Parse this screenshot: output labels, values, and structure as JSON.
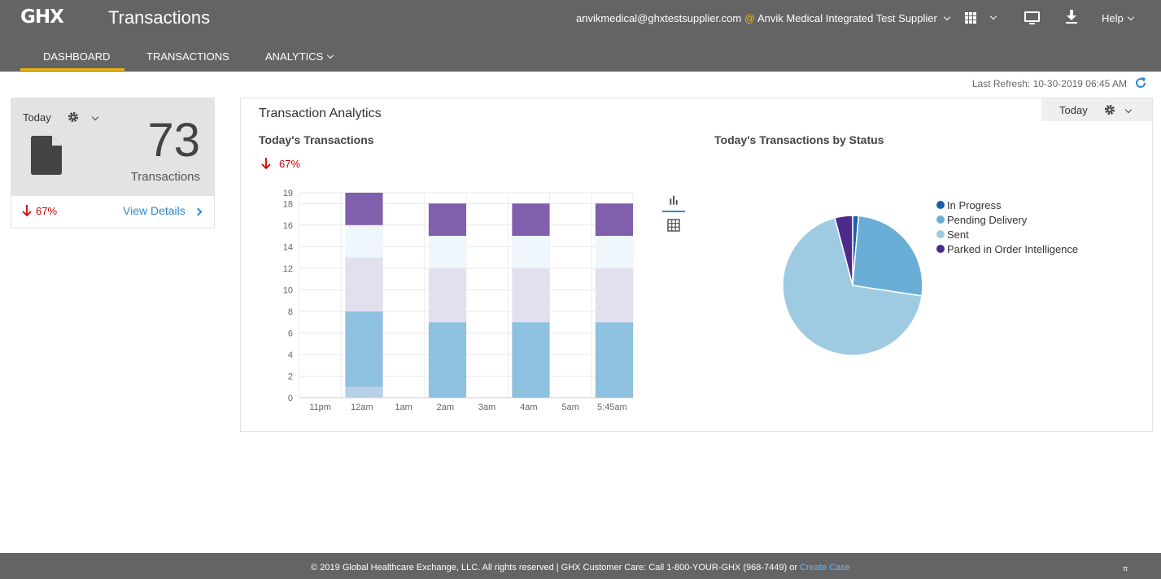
{
  "header": {
    "logo": "GHX",
    "app_title": "Transactions",
    "account_email": "anvikmedical@ghxtestsupplier.com",
    "account_at": "@",
    "account_org": "Anvik Medical Integrated Test Supplier",
    "help_label": "Help",
    "icons": [
      "apps-grid-icon",
      "monitor-icon",
      "download-icon"
    ]
  },
  "nav": {
    "tabs": [
      {
        "label": "DASHBOARD",
        "active": true
      },
      {
        "label": "TRANSACTIONS",
        "active": false
      },
      {
        "label": "ANALYTICS",
        "active": false
      }
    ]
  },
  "refresh": {
    "label": "Last Refresh: 10-30-2019 06:45 AM"
  },
  "tile": {
    "period": "Today",
    "count": "73",
    "label": "Transactions",
    "change": "67%",
    "details_link": "View Details"
  },
  "panel": {
    "title": "Transaction Analytics",
    "period": "Today",
    "left_subtitle": "Today's Transactions",
    "left_change": "67%",
    "right_subtitle": "Today's Transactions by Status"
  },
  "colors": {
    "accent": "#f4b400",
    "link": "#2a8ad2",
    "negative": "#cc0000",
    "topbar": "#646464"
  },
  "chart_data": [
    {
      "type": "bar",
      "stacked": true,
      "title": "Today's Transactions",
      "categories": [
        "11pm",
        "12am",
        "1am",
        "2am",
        "3am",
        "4am",
        "5am",
        "5:45am"
      ],
      "series": [
        {
          "color": "#b8cfe8",
          "values": [
            0,
            1,
            0,
            0,
            0,
            0,
            0,
            0
          ]
        },
        {
          "color": "#8ec0e0",
          "values": [
            0,
            7,
            0,
            7,
            0,
            7,
            0,
            7
          ]
        },
        {
          "color": "#e2e0ee",
          "values": [
            0,
            5,
            0,
            5,
            0,
            5,
            0,
            5
          ]
        },
        {
          "color": "#f0f7fc",
          "values": [
            0,
            3,
            0,
            3,
            0,
            3,
            0,
            3
          ]
        },
        {
          "color": "#8060ac",
          "values": [
            0,
            3,
            0,
            3,
            0,
            3,
            0,
            3
          ]
        }
      ],
      "ylim": [
        0,
        19
      ],
      "yticks": [
        0,
        2,
        4,
        6,
        8,
        10,
        12,
        14,
        16,
        18,
        19
      ],
      "grid": true
    },
    {
      "type": "pie",
      "title": "Today's Transactions by Status",
      "legend_position": "right",
      "slices": [
        {
          "label": "In Progress",
          "value": 1,
          "color": "#1f5fa8"
        },
        {
          "label": "Pending Delivery",
          "value": 19,
          "color": "#6aaed8"
        },
        {
          "label": "Sent",
          "value": 50,
          "color": "#9ecae2"
        },
        {
          "label": "Parked in Order Intelligence",
          "value": 3,
          "color": "#4b2a8a"
        }
      ]
    }
  ],
  "footer": {
    "text": "© 2019 Global Healthcare Exchange, LLC. All rights reserved | GHX Customer Care: Call 1-800-YOUR-GHX (968-7449) or",
    "link": "Create Case",
    "pi": "π"
  }
}
